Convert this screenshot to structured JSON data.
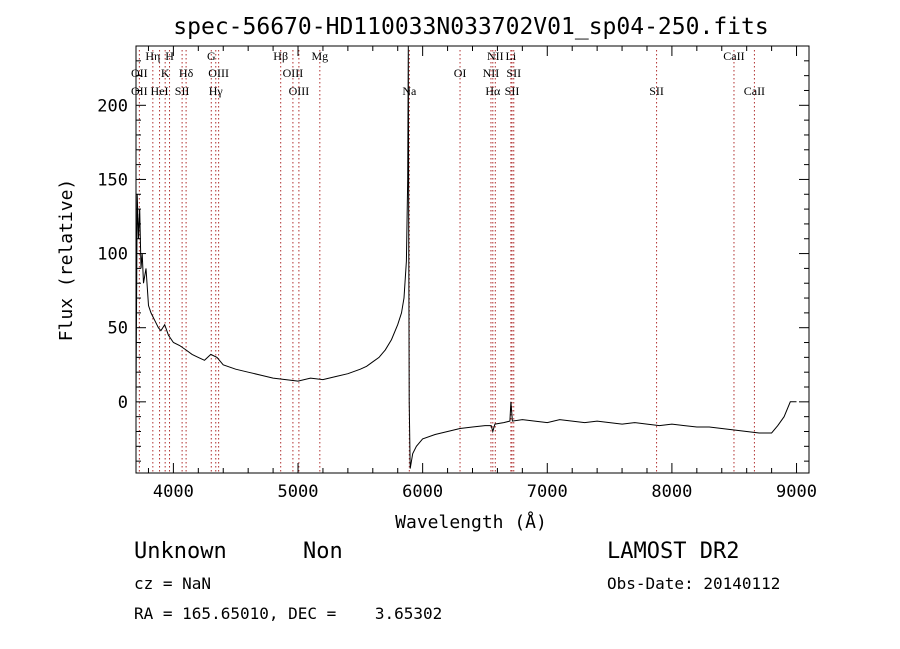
{
  "chart_data": {
    "type": "line",
    "title": "spec-56670-HD110033N033702V01_sp04-250.fits",
    "xlabel": "Wavelength (Å)",
    "ylabel": "Flux (relative)",
    "xlim": [
      3700,
      9100
    ],
    "ylim": [
      -48,
      240
    ],
    "xticks": [
      4000,
      5000,
      6000,
      7000,
      8000,
      9000
    ],
    "yticks": [
      0,
      50,
      100,
      150,
      200
    ],
    "line_color": "#000000",
    "marker_color": "#b03030",
    "series": [
      {
        "x": [
          3700,
          3710,
          3720,
          3730,
          3740,
          3750,
          3760,
          3780,
          3800,
          3820,
          3850,
          3880,
          3900,
          3930,
          3960,
          4000,
          4050,
          4100,
          4150,
          4200,
          4250,
          4300,
          4350,
          4400,
          4500,
          4600,
          4700,
          4800,
          4900,
          5000,
          5100,
          5200,
          5300,
          5400,
          5500,
          5550,
          5600,
          5650,
          5700,
          5750,
          5800,
          5830,
          5850,
          5870,
          5880,
          5885,
          5888,
          5892,
          5900,
          5920,
          5950,
          6000,
          6100,
          6200,
          6300,
          6400,
          6500,
          6550,
          6563,
          6580,
          6650,
          6700,
          6708,
          6720,
          6800,
          6900,
          7000,
          7100,
          7200,
          7300,
          7400,
          7500,
          7600,
          7700,
          7800,
          7900,
          8000,
          8100,
          8200,
          8300,
          8400,
          8500,
          8600,
          8700,
          8800,
          8850,
          8900,
          8950,
          9000
        ],
        "y": [
          0,
          140,
          110,
          130,
          90,
          100,
          80,
          90,
          65,
          60,
          55,
          50,
          48,
          52,
          45,
          40,
          38,
          35,
          32,
          30,
          28,
          32,
          30,
          25,
          22,
          20,
          18,
          16,
          15,
          14,
          16,
          15,
          17,
          19,
          22,
          24,
          27,
          30,
          35,
          42,
          52,
          60,
          70,
          95,
          150,
          240,
          120,
          0,
          -45,
          -35,
          -30,
          -25,
          -22,
          -20,
          -18,
          -17,
          -16,
          -16,
          -20,
          -15,
          -14,
          -13,
          0,
          -13,
          -12,
          -13,
          -14,
          -12,
          -13,
          -14,
          -13,
          -14,
          -15,
          -14,
          -15,
          -16,
          -15,
          -16,
          -17,
          -17,
          -18,
          -19,
          -20,
          -21,
          -21,
          -16,
          -10,
          0,
          0
        ]
      }
    ],
    "lines_top": [
      {
        "label": "Hη",
        "x": 3835
      },
      {
        "label": "H",
        "x": 3969
      },
      {
        "label": "G",
        "x": 4304
      },
      {
        "label": "Hβ",
        "x": 4861
      },
      {
        "label": "Mg",
        "x": 5175
      },
      {
        "label": "NII",
        "x": 6583
      },
      {
        "label": "Li",
        "x": 6708
      },
      {
        "label": "CaII",
        "x": 8498
      }
    ],
    "lines_mid": [
      {
        "label": "OII",
        "x": 3727
      },
      {
        "label": "K",
        "x": 3934
      },
      {
        "label": "Hδ",
        "x": 4102
      },
      {
        "label": "OIII",
        "x": 4363
      },
      {
        "label": "OIII",
        "x": 4959
      },
      {
        "label": "OI",
        "x": 6300
      },
      {
        "label": "NII",
        "x": 6548
      },
      {
        "label": "SII",
        "x": 6731
      }
    ],
    "lines_low": [
      {
        "label": "OII",
        "x": 3727
      },
      {
        "label": "HeI",
        "x": 3889
      },
      {
        "label": "SII",
        "x": 4070
      },
      {
        "label": "Hγ",
        "x": 4340
      },
      {
        "label": "OIII",
        "x": 5007
      },
      {
        "label": "Na",
        "x": 5893
      },
      {
        "label": "Hα",
        "x": 6563
      },
      {
        "label": "SII",
        "x": 6717
      },
      {
        "label": "SII",
        "x": 7877
      },
      {
        "label": "CaII",
        "x": 8662
      }
    ]
  },
  "info": {
    "class": "Unknown",
    "subclass": "Non",
    "survey": "LAMOST DR2",
    "cz": "cz = NaN",
    "obs_date": "Obs-Date: 20140112",
    "coords": "RA = 165.65010, DEC =    3.65302"
  }
}
